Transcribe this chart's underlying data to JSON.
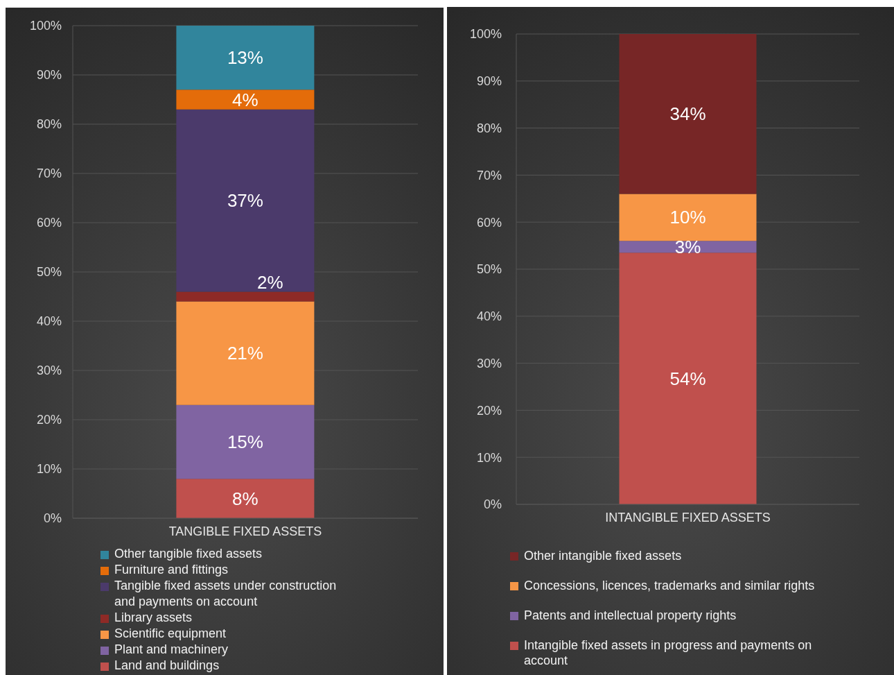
{
  "chart_data": [
    {
      "type": "bar",
      "stacked": true,
      "categories": [
        "TANGIBLE FIXED ASSETS"
      ],
      "series": [
        {
          "name": "Land and buildings",
          "color": "#c0504d",
          "values": [
            8
          ],
          "value_labels": [
            "8%"
          ]
        },
        {
          "name": "Plant and machinery",
          "color": "#8064a2",
          "values": [
            15
          ],
          "value_labels": [
            "15%"
          ]
        },
        {
          "name": "Scientific equipment",
          "color": "#f79646",
          "values": [
            21
          ],
          "value_labels": [
            "21%"
          ]
        },
        {
          "name": "Library  assets",
          "color": "#8e2a26",
          "values": [
            2
          ],
          "value_labels": [
            "2%"
          ]
        },
        {
          "name": "Tangible fixed assets under construction and payments on account",
          "color": "#4b3a6b",
          "values": [
            37
          ],
          "value_labels": [
            "37%"
          ]
        },
        {
          "name": "Furniture and fittings",
          "color": "#e46c0a",
          "values": [
            4
          ],
          "value_labels": [
            "4%"
          ]
        },
        {
          "name": "Other tangible fixed assets",
          "color": "#31859c",
          "values": [
            13
          ],
          "value_labels": [
            "13%"
          ]
        }
      ],
      "ylim": [
        0,
        100
      ],
      "yticks": [
        {
          "value": 0,
          "label": "0%"
        },
        {
          "value": 10,
          "label": "10%"
        },
        {
          "value": 20,
          "label": "20%"
        },
        {
          "value": 30,
          "label": "30%"
        },
        {
          "value": 40,
          "label": "40%"
        },
        {
          "value": 50,
          "label": "50%"
        },
        {
          "value": 60,
          "label": "60%"
        },
        {
          "value": 70,
          "label": "70%"
        },
        {
          "value": 80,
          "label": "80%"
        },
        {
          "value": 90,
          "label": "90%"
        },
        {
          "value": 100,
          "label": "100%"
        }
      ],
      "grid": "y",
      "legend": "bottom"
    },
    {
      "type": "bar",
      "stacked": true,
      "categories": [
        "INTANGIBLE FIXED ASSETS"
      ],
      "series": [
        {
          "name": "Intangible fixed assets in progress and payments on account",
          "color": "#c0504d",
          "values": [
            53.5
          ],
          "value_labels": [
            "54%"
          ]
        },
        {
          "name": "Patents and intellectual property rights",
          "color": "#8064a2",
          "values": [
            2.5
          ],
          "value_labels": [
            "3%"
          ]
        },
        {
          "name": "Concessions, licences, trademarks and similar rights",
          "color": "#f79646",
          "values": [
            10
          ],
          "value_labels": [
            "10%"
          ]
        },
        {
          "name": "Other intangible fixed assets",
          "color": "#772626",
          "values": [
            34
          ],
          "value_labels": [
            "34%"
          ]
        }
      ],
      "ylim": [
        0,
        100
      ],
      "yticks": [
        {
          "value": 0,
          "label": "0%"
        },
        {
          "value": 10,
          "label": "10%"
        },
        {
          "value": 20,
          "label": "20%"
        },
        {
          "value": 30,
          "label": "30%"
        },
        {
          "value": 40,
          "label": "40%"
        },
        {
          "value": 50,
          "label": "50%"
        },
        {
          "value": 60,
          "label": "60%"
        },
        {
          "value": 70,
          "label": "70%"
        },
        {
          "value": 80,
          "label": "80%"
        },
        {
          "value": 90,
          "label": "90%"
        },
        {
          "value": 100,
          "label": "100%"
        }
      ],
      "grid": "y",
      "legend": "bottom"
    }
  ]
}
